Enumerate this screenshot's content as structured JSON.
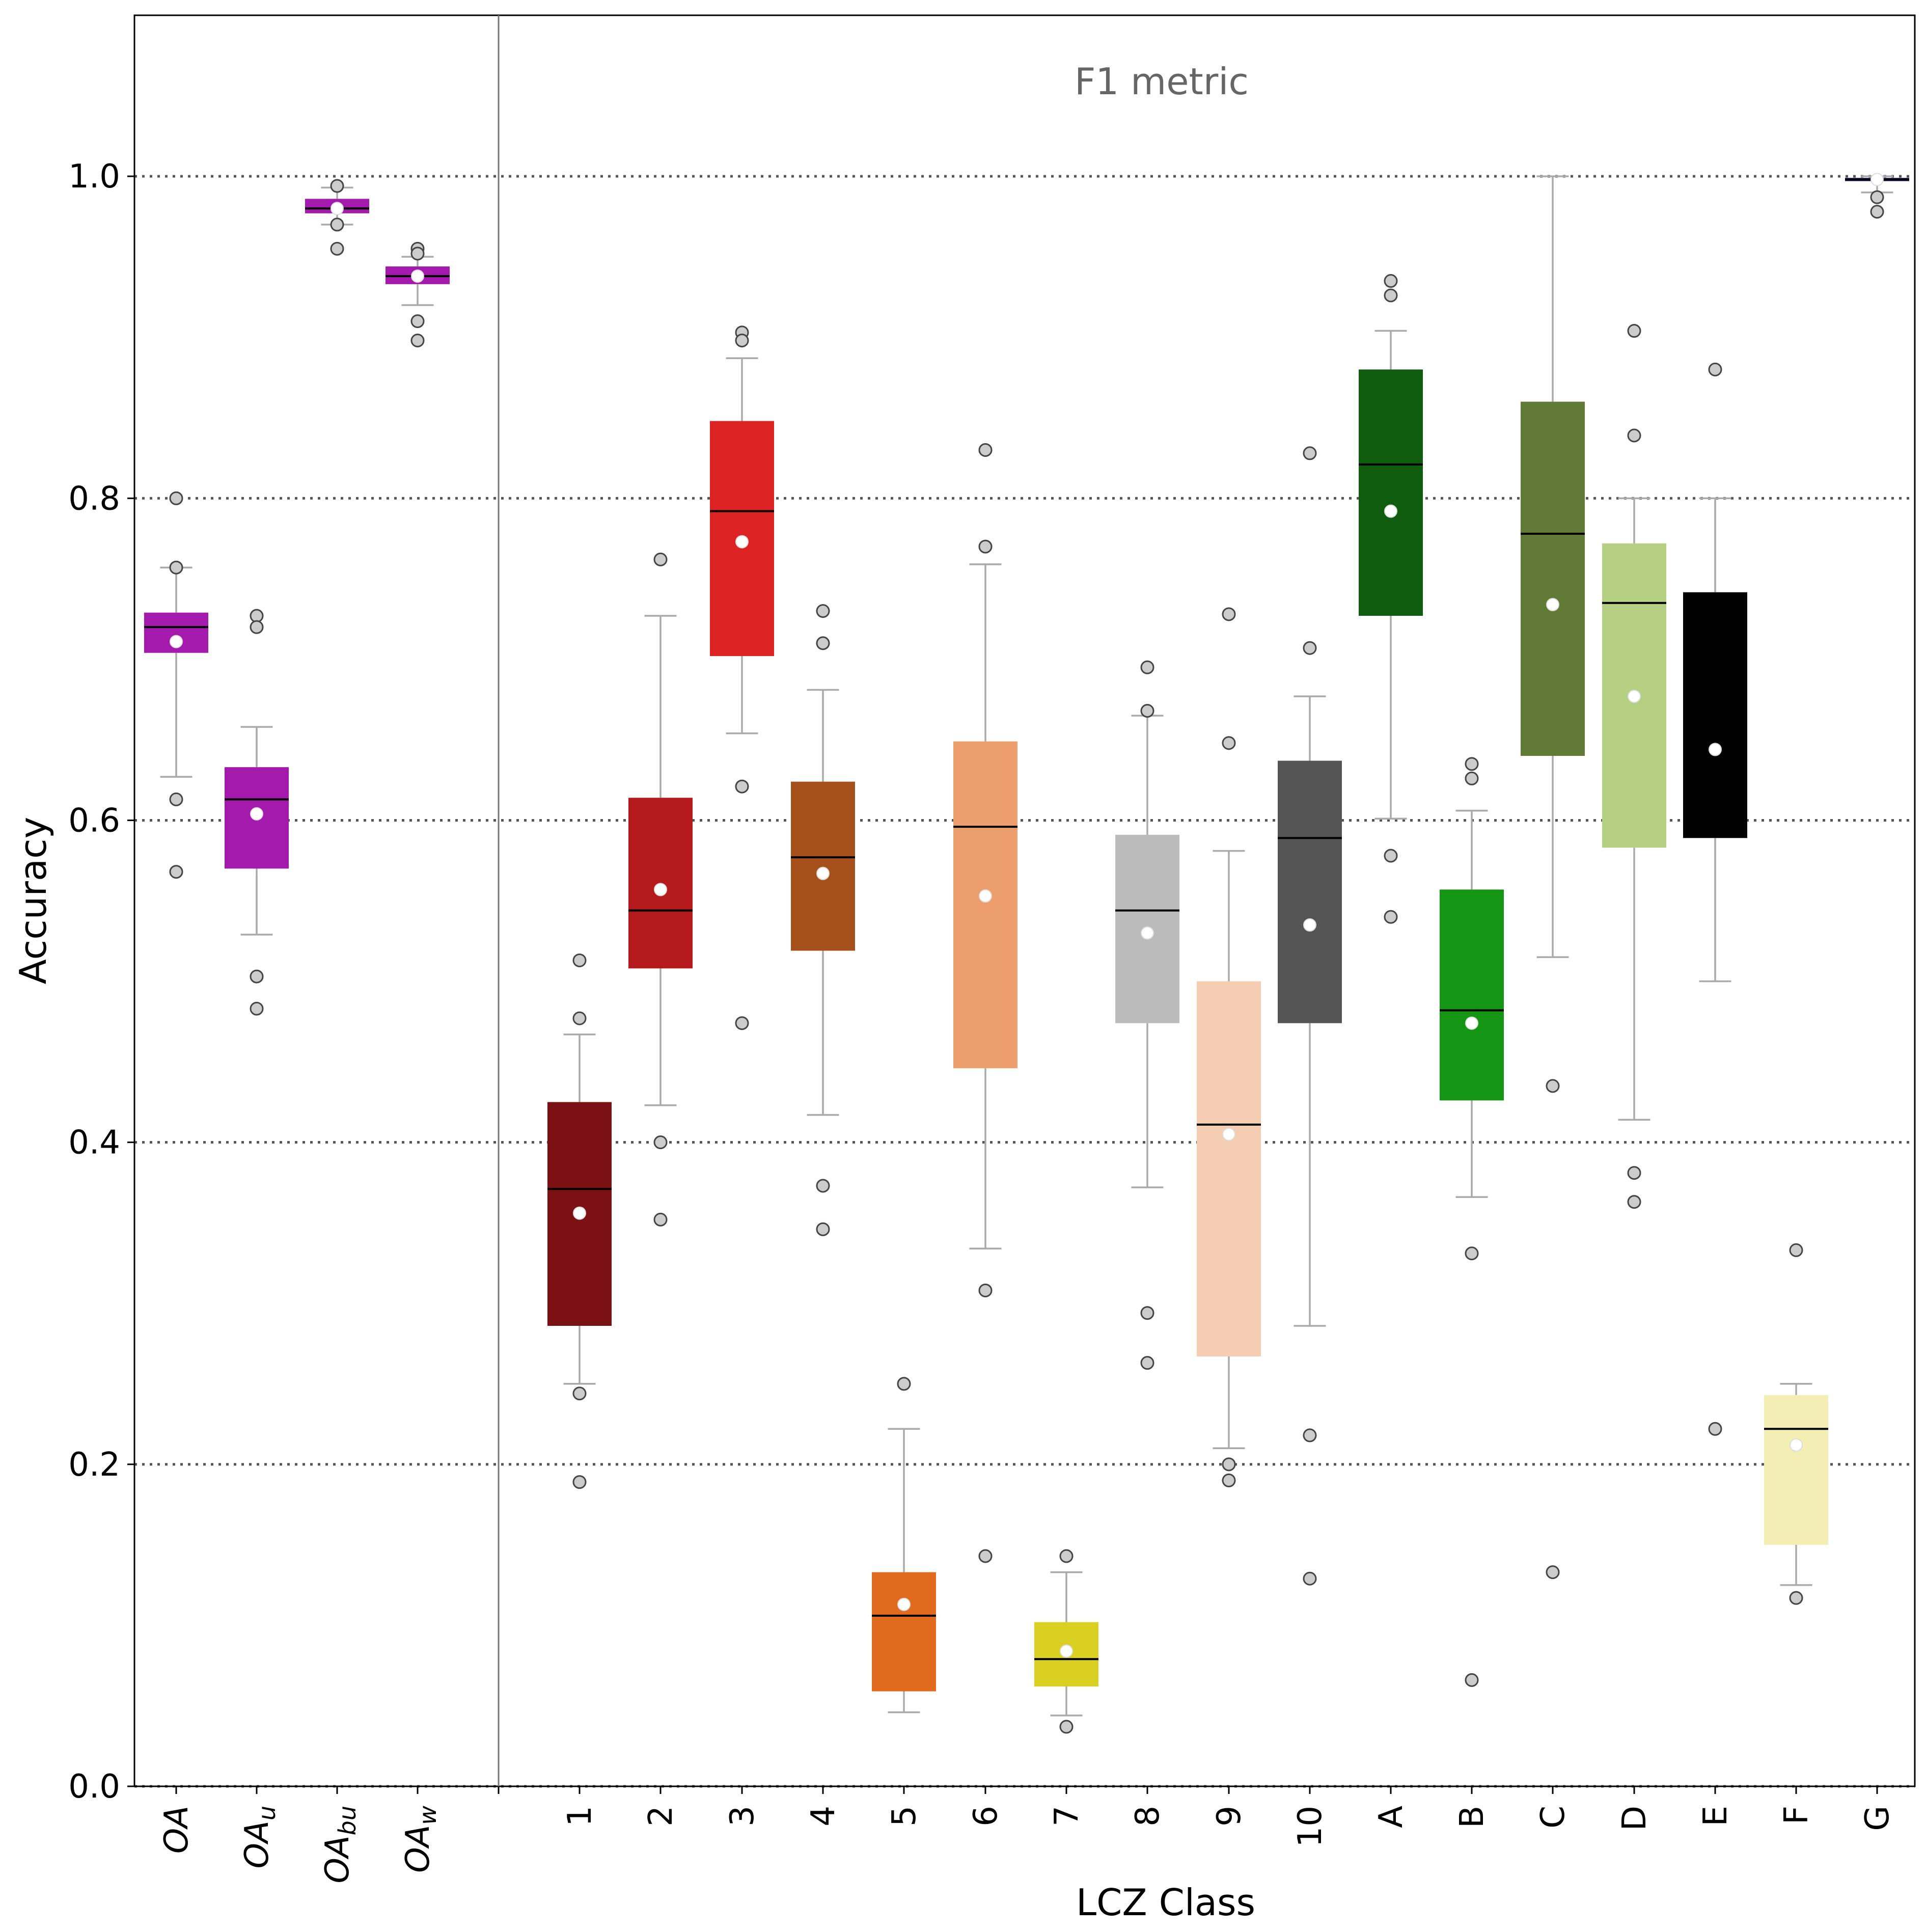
{
  "chart_data": {
    "type": "box",
    "annotation": "F1 metric",
    "xlabel": "LCZ Class",
    "ylabel": "Accuracy",
    "ylim": [
      0,
      1.1
    ],
    "yticks": [
      "0.0",
      "0.2",
      "0.4",
      "0.6",
      "0.8",
      "1.0"
    ],
    "gridlines_y": [
      0.2,
      0.4,
      0.6,
      0.8,
      1.0
    ],
    "grid_style": "dotted",
    "groups": [
      {
        "label": "OA",
        "sub": "",
        "color": "#a31aad",
        "q1": 0.704,
        "q3": 0.729,
        "median": 0.72,
        "mean": 0.711,
        "whisker_low": 0.627,
        "whisker_high": 0.757,
        "fliers": [
          0.8,
          0.757,
          0.613,
          0.568
        ]
      },
      {
        "label": "OA",
        "sub": "u",
        "color": "#a31aad",
        "q1": 0.57,
        "q3": 0.633,
        "median": 0.613,
        "mean": 0.604,
        "whisker_low": 0.529,
        "whisker_high": 0.658,
        "fliers": [
          0.727,
          0.72,
          0.503,
          0.483
        ]
      },
      {
        "label": "OA",
        "sub": "bu",
        "color": "#a31aad",
        "q1": 0.977,
        "q3": 0.986,
        "median": 0.98,
        "mean": 0.98,
        "whisker_low": 0.97,
        "whisker_high": 0.993,
        "fliers": [
          0.994,
          0.97,
          0.955
        ]
      },
      {
        "label": "OA",
        "sub": "w",
        "color": "#a31aad",
        "q1": 0.933,
        "q3": 0.944,
        "median": 0.938,
        "mean": 0.938,
        "whisker_low": 0.92,
        "whisker_high": 0.95,
        "fliers": [
          0.955,
          0.952,
          0.91,
          0.898
        ]
      },
      {
        "label": "1",
        "sub": "",
        "color": "#7b1113",
        "q1": 0.286,
        "q3": 0.425,
        "median": 0.371,
        "mean": 0.356,
        "whisker_low": 0.25,
        "whisker_high": 0.467,
        "fliers": [
          0.513,
          0.477,
          0.244,
          0.189
        ]
      },
      {
        "label": "2",
        "sub": "",
        "color": "#b4191b",
        "q1": 0.508,
        "q3": 0.614,
        "median": 0.544,
        "mean": 0.557,
        "whisker_low": 0.423,
        "whisker_high": 0.727,
        "fliers": [
          0.762,
          0.4,
          0.352
        ]
      },
      {
        "label": "3",
        "sub": "",
        "color": "#dd2224",
        "q1": 0.702,
        "q3": 0.848,
        "median": 0.792,
        "mean": 0.773,
        "whisker_low": 0.654,
        "whisker_high": 0.887,
        "fliers": [
          0.903,
          0.898,
          0.621,
          0.474
        ]
      },
      {
        "label": "4",
        "sub": "",
        "color": "#a6511b",
        "q1": 0.519,
        "q3": 0.624,
        "median": 0.577,
        "mean": 0.567,
        "whisker_low": 0.417,
        "whisker_high": 0.681,
        "fliers": [
          0.73,
          0.71,
          0.373,
          0.346
        ]
      },
      {
        "label": "5",
        "sub": "",
        "color": "#e06b1f",
        "q1": 0.059,
        "q3": 0.133,
        "median": 0.106,
        "mean": 0.113,
        "whisker_low": 0.046,
        "whisker_high": 0.222,
        "fliers": [
          0.25
        ]
      },
      {
        "label": "6",
        "sub": "",
        "color": "#ec9e6c",
        "q1": 0.446,
        "q3": 0.649,
        "median": 0.596,
        "mean": 0.553,
        "whisker_low": 0.334,
        "whisker_high": 0.759,
        "fliers": [
          0.83,
          0.77,
          0.308,
          0.143
        ]
      },
      {
        "label": "7",
        "sub": "",
        "color": "#d9d022",
        "q1": 0.062,
        "q3": 0.102,
        "median": 0.079,
        "mean": 0.084,
        "whisker_low": 0.044,
        "whisker_high": 0.133,
        "fliers": [
          0.143,
          0.037
        ]
      },
      {
        "label": "8",
        "sub": "",
        "color": "#bbbbbb",
        "q1": 0.474,
        "q3": 0.591,
        "median": 0.544,
        "mean": 0.53,
        "whisker_low": 0.372,
        "whisker_high": 0.665,
        "fliers": [
          0.695,
          0.668,
          0.294,
          0.263
        ]
      },
      {
        "label": "9",
        "sub": "",
        "color": "#f5cdb3",
        "q1": 0.267,
        "q3": 0.5,
        "median": 0.411,
        "mean": 0.405,
        "whisker_low": 0.21,
        "whisker_high": 0.581,
        "fliers": [
          0.728,
          0.648,
          0.2,
          0.19
        ]
      },
      {
        "label": "10",
        "sub": "",
        "color": "#545454",
        "q1": 0.474,
        "q3": 0.637,
        "median": 0.589,
        "mean": 0.535,
        "whisker_low": 0.286,
        "whisker_high": 0.677,
        "fliers": [
          0.828,
          0.707,
          0.218,
          0.129
        ]
      },
      {
        "label": "A",
        "sub": "",
        "color": "#0f5c0f",
        "q1": 0.727,
        "q3": 0.88,
        "median": 0.821,
        "mean": 0.792,
        "whisker_low": 0.601,
        "whisker_high": 0.904,
        "fliers": [
          0.935,
          0.926,
          0.578,
          0.54
        ]
      },
      {
        "label": "B",
        "sub": "",
        "color": "#149614",
        "q1": 0.426,
        "q3": 0.557,
        "median": 0.482,
        "mean": 0.474,
        "whisker_low": 0.366,
        "whisker_high": 0.606,
        "fliers": [
          0.635,
          0.626,
          0.331,
          0.066
        ]
      },
      {
        "label": "C",
        "sub": "",
        "color": "#617a35",
        "q1": 0.64,
        "q3": 0.86,
        "median": 0.778,
        "mean": 0.734,
        "whisker_low": 0.515,
        "whisker_high": 1.0,
        "fliers": [
          0.435,
          0.133
        ]
      },
      {
        "label": "D",
        "sub": "",
        "color": "#b5d083",
        "q1": 0.583,
        "q3": 0.772,
        "median": 0.735,
        "mean": 0.677,
        "whisker_low": 0.414,
        "whisker_high": 0.8,
        "fliers": [
          0.904,
          0.839,
          0.381,
          0.363
        ]
      },
      {
        "label": "E",
        "sub": "",
        "color": "#000000",
        "q1": 0.589,
        "q3": 0.741,
        "median": 0.741,
        "mean": 0.644,
        "whisker_low": 0.5,
        "whisker_high": 0.8,
        "fliers": [
          0.88,
          0.222
        ]
      },
      {
        "label": "F",
        "sub": "",
        "color": "#f2eeb4",
        "q1": 0.15,
        "q3": 0.243,
        "median": 0.222,
        "mean": 0.212,
        "whisker_low": 0.125,
        "whisker_high": 0.25,
        "fliers": [
          0.333,
          0.117
        ]
      },
      {
        "label": "G",
        "sub": "",
        "color": "#141670",
        "q1": 0.997,
        "q3": 0.999,
        "median": 0.998,
        "mean": 0.998,
        "whisker_low": 0.99,
        "whisker_high": 1.0,
        "fliers": [
          0.987,
          0.978
        ]
      }
    ]
  }
}
